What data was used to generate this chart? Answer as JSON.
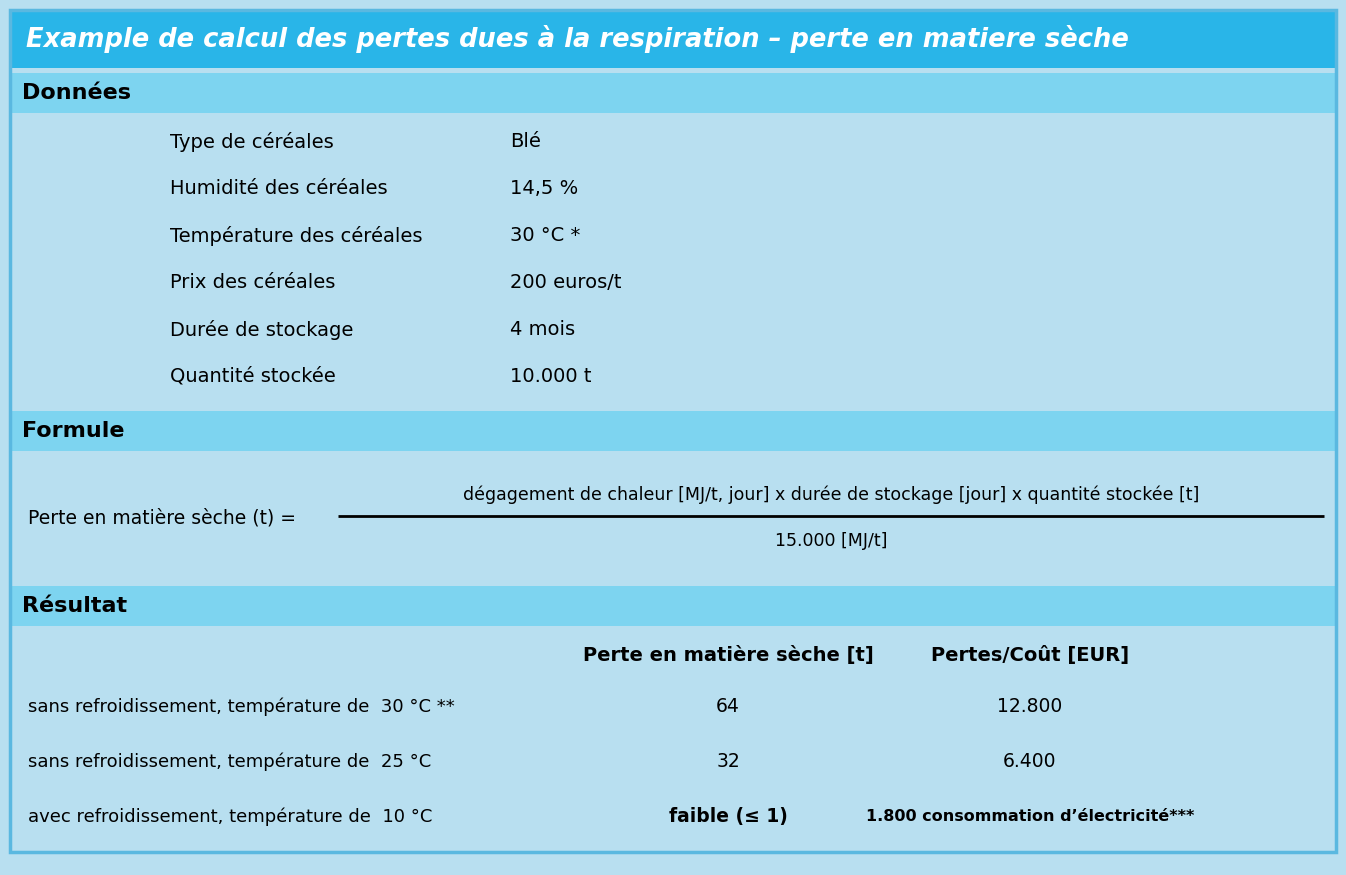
{
  "title": "Example de calcul des pertes dues à la respiration – perte en matiere sèche",
  "title_color": "#ffffff",
  "title_bg": "#29b5e8",
  "header_bg": "#7dd4f0",
  "body_bg": "#b8dff0",
  "section_headers": [
    "Données",
    "Formule",
    "Résultat"
  ],
  "donnees_rows": [
    [
      "Type de céréales",
      "Blé"
    ],
    [
      "Humidité des céréales",
      "14,5 %"
    ],
    [
      "Température des céréales",
      "30 °C *"
    ],
    [
      "Prix des céréales",
      "200 euros/t"
    ],
    [
      "Durée de stockage",
      "4 mois"
    ],
    [
      "Quantité stockée",
      "10.000 t"
    ]
  ],
  "formule_left": "Perte en matière sèche (t) =",
  "formule_numerator": "dégagement de chaleur [MJ/t, jour] x durée de stockage [jour] x quantité stockée [t]",
  "formule_denominator": "15.000 [MJ/t]",
  "resultat_col1": "Perte en matière sèche [t]",
  "resultat_col2": "Pertes/Coût [EUR]",
  "resultat_rows": [
    [
      "sans refroidissement, température de  30 °C **",
      "64",
      "12.800"
    ],
    [
      "sans refroidissement, température de  25 °C",
      "32",
      "6.400"
    ],
    [
      "avec refroidissement, température de  10 °C",
      "faible (≤ 1)",
      "1.800 consommation d’électricité***"
    ]
  ],
  "fig_w": 13.46,
  "fig_h": 8.75,
  "dpi": 100
}
